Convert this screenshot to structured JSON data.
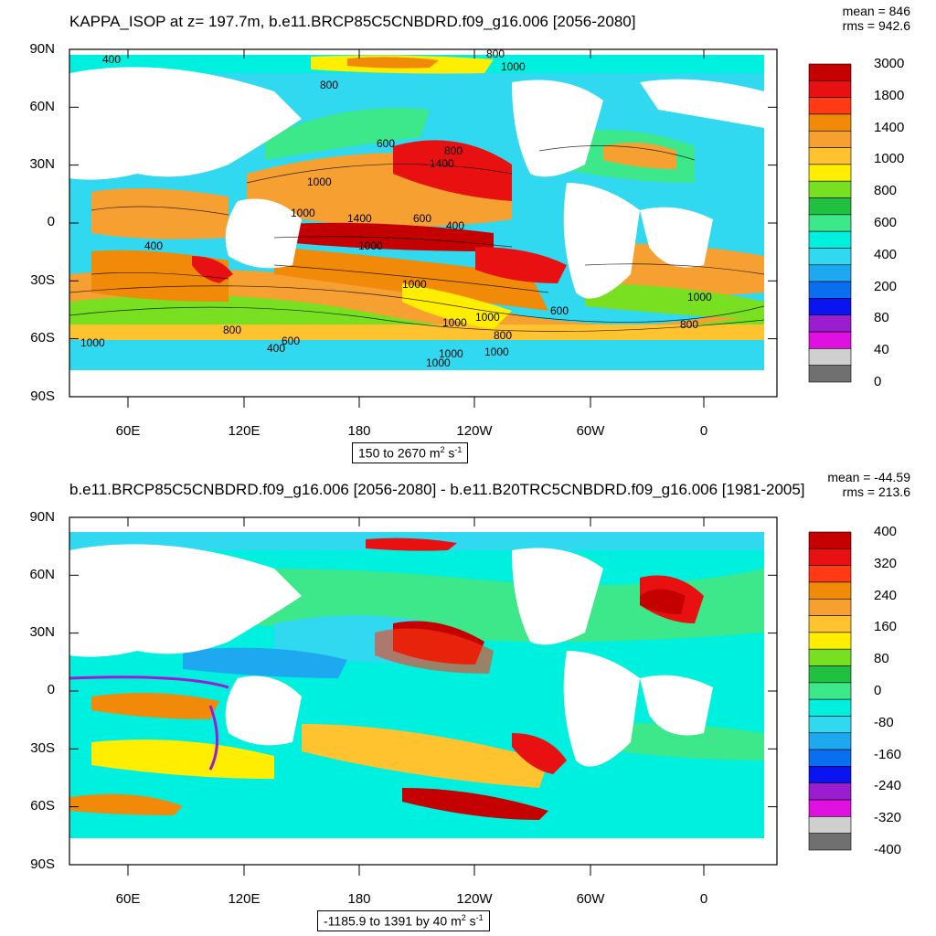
{
  "top": {
    "title": "KAPPA_ISOP at z= 197.7m, b.e11.BRCP85C5CNBDRD.f09_g16.006 [2056-2080]",
    "mean": "mean = 846",
    "rms": "rms = 942.6",
    "range_text": "150 to 2670 m",
    "units_sup": "2",
    "units_tail": " s",
    "units_sup2": "-1",
    "colorbar_labels": [
      "3000",
      "1800",
      "1400",
      "1000",
      "800",
      "600",
      "400",
      "200",
      "80",
      "40",
      "0"
    ],
    "colorbar_colors": [
      "#c40000",
      "#e81010",
      "#ff3a14",
      "#f08a08",
      "#f7a032",
      "#ffc330",
      "#ffee00",
      "#78e020",
      "#20c040",
      "#3ce889",
      "#00f0e0",
      "#30d8f0",
      "#1ea8f0",
      "#0a6ef0",
      "#0a14f0",
      "#9a1ed0",
      "#e010e0",
      "#cfcfcf",
      "#707070"
    ],
    "contour_labels": [
      "400",
      "800",
      "800",
      "1000",
      "600",
      "800",
      "1400",
      "1000",
      "1000",
      "1400",
      "600",
      "400",
      "1000",
      "400",
      "1000",
      "1000",
      "1000",
      "800",
      "800",
      "1000",
      "800",
      "1000",
      "600",
      "600",
      "400",
      "1000",
      "1000",
      "1000"
    ]
  },
  "bottom": {
    "title": "b.e11.BRCP85C5CNBDRD.f09_g16.006 [2056-2080] - b.e11.B20TRC5CNBDRD.f09_g16.006 [1981-2005]",
    "mean": "mean = -44.59",
    "rms": "rms = 213.6",
    "range_text": "-1185.9 to 1391 by 40 m",
    "units_sup": "2",
    "units_tail": " s",
    "units_sup2": "-1",
    "colorbar_labels": [
      "400",
      "320",
      "240",
      "160",
      "80",
      "0",
      "-80",
      "-160",
      "-240",
      "-320",
      "-400"
    ],
    "colorbar_colors": [
      "#c40000",
      "#e81010",
      "#ff3a14",
      "#f08a08",
      "#f7a032",
      "#ffc330",
      "#ffee00",
      "#78e020",
      "#20c040",
      "#3ce889",
      "#00f0e0",
      "#30d8f0",
      "#1ea8f0",
      "#0a6ef0",
      "#0a14f0",
      "#9a1ed0",
      "#e010e0",
      "#cfcfcf",
      "#707070"
    ]
  },
  "axes": {
    "lat_labels": [
      "90N",
      "60N",
      "30N",
      "0",
      "30S",
      "60S",
      "90S"
    ],
    "lon_labels": [
      "60E",
      "120E",
      "180",
      "120W",
      "60W",
      "0"
    ]
  }
}
